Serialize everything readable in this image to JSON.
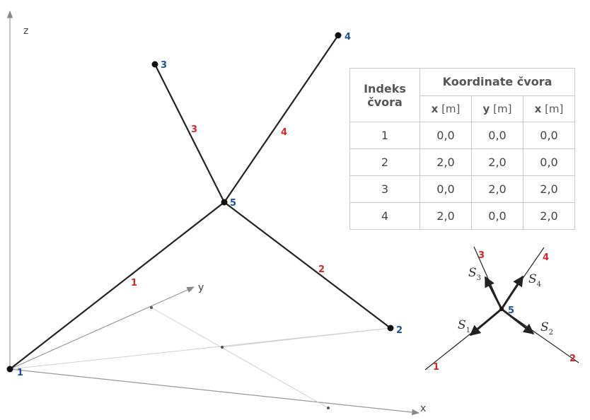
{
  "axes": {
    "x": "x",
    "y": "y",
    "z": "z"
  },
  "nodes": [
    {
      "label": "1"
    },
    {
      "label": "2"
    },
    {
      "label": "3"
    },
    {
      "label": "4"
    },
    {
      "label": "5"
    }
  ],
  "members": [
    {
      "label": "1"
    },
    {
      "label": "2"
    },
    {
      "label": "3"
    },
    {
      "label": "4"
    }
  ],
  "detail": {
    "node": "5",
    "members": [
      "1",
      "2",
      "3",
      "4"
    ],
    "forces": [
      {
        "symbol": "S",
        "sub": "1"
      },
      {
        "symbol": "S",
        "sub": "2"
      },
      {
        "symbol": "S",
        "sub": "3"
      },
      {
        "symbol": "S",
        "sub": "4"
      }
    ]
  },
  "table": {
    "index_header": "Indeks čvora",
    "group_header": "Koordinate čvora",
    "columns": [
      {
        "var": "x",
        "unit": "[m]"
      },
      {
        "var": "y",
        "unit": "[m]"
      },
      {
        "var": "x",
        "unit": "[m]"
      }
    ],
    "rows": [
      [
        "1",
        "0,0",
        "0,0",
        "0,0"
      ],
      [
        "2",
        "2,0",
        "2,0",
        "0,0"
      ],
      [
        "3",
        "0,0",
        "2,0",
        "2,0"
      ],
      [
        "4",
        "2,0",
        "0,0",
        "2,0"
      ]
    ]
  },
  "colors": {
    "node_label": "#1f4f9c",
    "member_label": "#d4262b",
    "member_line": "#222222",
    "axis": "#888888",
    "guide": "#cccccc"
  }
}
